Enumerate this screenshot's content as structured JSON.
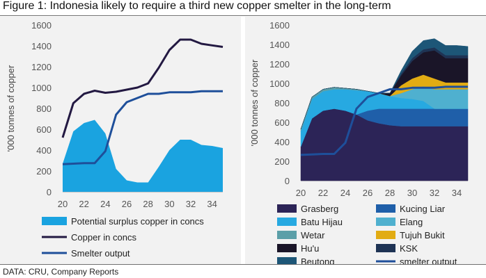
{
  "title": "Figure 1: Indonesia likely to require a third new copper smelter in the long-term",
  "source": "DATA: CRU, Company Reports",
  "chart_data": [
    {
      "type": "area+line",
      "xlabel": "",
      "ylabel": "'000 tonnes of copper",
      "ylim": [
        0,
        1600
      ],
      "yticks": [
        0,
        200,
        400,
        600,
        800,
        1000,
        1200,
        1400,
        1600
      ],
      "xticks": [
        20,
        22,
        24,
        26,
        28,
        30,
        32,
        34
      ],
      "x": [
        20,
        21,
        22,
        23,
        24,
        25,
        26,
        27,
        28,
        29,
        30,
        31,
        32,
        33,
        34,
        35
      ],
      "series": [
        {
          "name": "Potential surplus copper in concs",
          "kind": "area",
          "color": "#1aa3e0",
          "values": [
            270,
            580,
            660,
            690,
            560,
            220,
            110,
            90,
            90,
            240,
            400,
            500,
            500,
            450,
            440,
            420
          ]
        },
        {
          "name": "Copper in concs",
          "kind": "line",
          "color": "#231942",
          "values": [
            520,
            850,
            940,
            970,
            950,
            960,
            980,
            1000,
            1040,
            1190,
            1360,
            1460,
            1460,
            1420,
            1405,
            1390
          ]
        },
        {
          "name": "Smelter output",
          "kind": "line",
          "color": "#1e4f9a",
          "values": [
            265,
            270,
            275,
            275,
            390,
            740,
            860,
            900,
            940,
            940,
            955,
            955,
            955,
            965,
            965,
            965
          ]
        }
      ],
      "legend": "bottom"
    },
    {
      "type": "stacked-area+line",
      "xlabel": "",
      "ylabel": "'000 tonnes of copper",
      "ylim": [
        0,
        1600
      ],
      "yticks": [
        0,
        200,
        400,
        600,
        800,
        1000,
        1200,
        1400,
        1600
      ],
      "xticks": [
        20,
        22,
        24,
        26,
        28,
        30,
        32,
        34
      ],
      "x": [
        20,
        21,
        22,
        23,
        24,
        25,
        26,
        27,
        28,
        29,
        30,
        31,
        32,
        33,
        34,
        35
      ],
      "series": [
        {
          "name": "Grasberg",
          "color": "#2c2457",
          "values": [
            350,
            640,
            720,
            740,
            720,
            680,
            620,
            590,
            570,
            560,
            560,
            560,
            560,
            560,
            560,
            560
          ]
        },
        {
          "name": "Kucing Liar",
          "color": "#1f5fa9",
          "values": [
            0,
            0,
            0,
            0,
            0,
            0,
            100,
            150,
            170,
            180,
            180,
            180,
            180,
            180,
            180,
            180
          ]
        },
        {
          "name": "Batu Hijau",
          "color": "#27a9e1",
          "values": [
            160,
            200,
            200,
            200,
            220,
            250,
            200,
            160,
            130,
            110,
            100,
            80,
            0,
            0,
            0,
            0
          ]
        },
        {
          "name": "Elang",
          "color": "#4fb0cf",
          "values": [
            0,
            0,
            0,
            0,
            0,
            0,
            0,
            0,
            0,
            50,
            100,
            150,
            200,
            200,
            200,
            200
          ]
        },
        {
          "name": "Wetar",
          "color": "#5b9fa8",
          "values": [
            20,
            20,
            20,
            20,
            10,
            10,
            0,
            0,
            0,
            0,
            0,
            0,
            0,
            0,
            0,
            0
          ]
        },
        {
          "name": "Tujuh Bukit",
          "color": "#e2ac13",
          "values": [
            0,
            0,
            0,
            0,
            0,
            0,
            0,
            0,
            0,
            80,
            110,
            120,
            110,
            70,
            70,
            70
          ]
        },
        {
          "name": "Hu'u",
          "color": "#1a1528",
          "values": [
            0,
            0,
            0,
            0,
            0,
            0,
            0,
            0,
            30,
            100,
            180,
            230,
            290,
            250,
            250,
            250
          ]
        },
        {
          "name": "KSK",
          "color": "#1e3354",
          "values": [
            0,
            0,
            0,
            0,
            0,
            0,
            0,
            0,
            0,
            20,
            30,
            30,
            30,
            30,
            30,
            30
          ]
        },
        {
          "name": "Beutong",
          "color": "#1d5677",
          "values": [
            0,
            0,
            0,
            0,
            0,
            0,
            0,
            0,
            0,
            30,
            70,
            90,
            90,
            100,
            100,
            90
          ]
        }
      ],
      "line": {
        "name": "smelter output",
        "color": "#1e4f9a",
        "values": [
          265,
          270,
          275,
          275,
          390,
          740,
          860,
          900,
          940,
          940,
          955,
          955,
          955,
          965,
          965,
          965
        ]
      },
      "legend_order": [
        "Grasberg",
        "Kucing Liar",
        "Batu Hijau",
        "Elang",
        "Wetar",
        "Tujuh Bukit",
        "Hu'u",
        "KSK",
        "Beutong",
        "smelter output"
      ],
      "legend": "bottom"
    }
  ]
}
